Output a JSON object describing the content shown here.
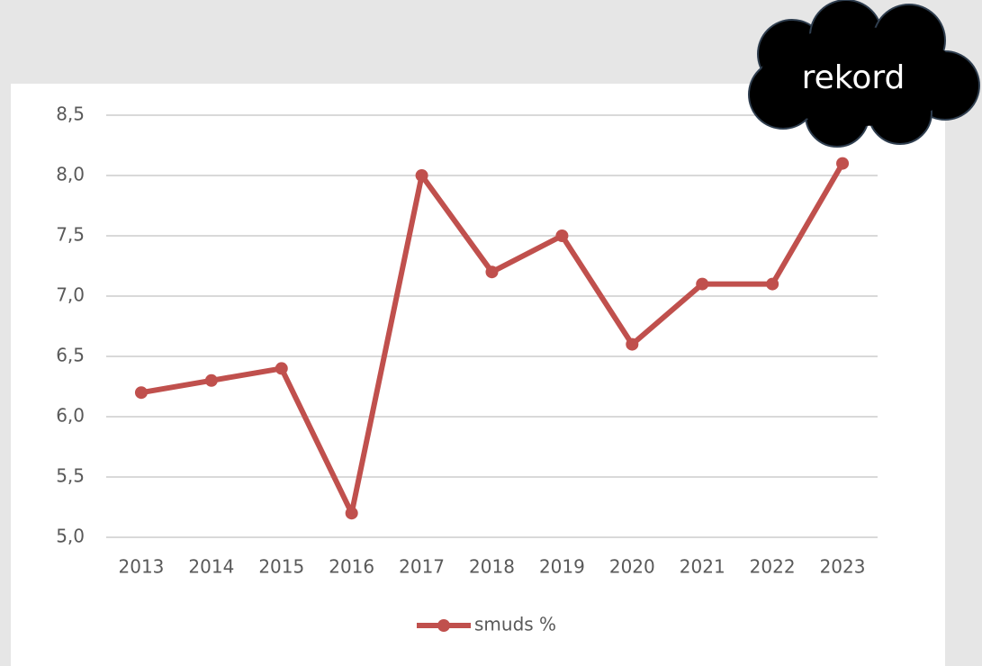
{
  "chart_data": {
    "type": "line",
    "annotation": "rekord",
    "categories": [
      "2013",
      "2014",
      "2015",
      "2016",
      "2017",
      "2018",
      "2019",
      "2020",
      "2021",
      "2022",
      "2023"
    ],
    "series": [
      {
        "name": "smuds %",
        "color": "#c0504d",
        "values": [
          6.2,
          6.3,
          6.4,
          5.2,
          8.0,
          7.2,
          7.5,
          6.6,
          7.1,
          7.1,
          8.1
        ]
      }
    ],
    "ylim": [
      5.0,
      8.5
    ],
    "yticks": [
      {
        "value": 5.0,
        "label": "5,0"
      },
      {
        "value": 5.5,
        "label": "5,5"
      },
      {
        "value": 6.0,
        "label": "6,0"
      },
      {
        "value": 6.5,
        "label": "6,5"
      },
      {
        "value": 7.0,
        "label": "7,0"
      },
      {
        "value": 7.5,
        "label": "7,5"
      },
      {
        "value": 8.0,
        "label": "8,0"
      },
      {
        "value": 8.5,
        "label": "8,5"
      }
    ],
    "grid": true,
    "legend": "bottom"
  }
}
